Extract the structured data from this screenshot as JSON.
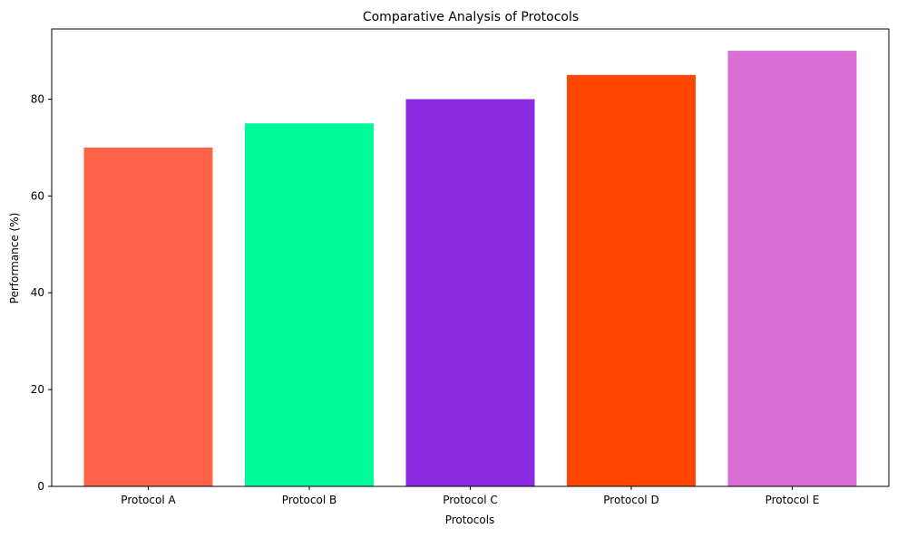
{
  "chart_data": {
    "type": "bar",
    "title": "Comparative Analysis of Protocols",
    "xlabel": "Protocols",
    "ylabel": "Performance (%)",
    "categories": [
      "Protocol A",
      "Protocol B",
      "Protocol C",
      "Protocol D",
      "Protocol E"
    ],
    "values": [
      70,
      75,
      80,
      85,
      90
    ],
    "colors": [
      "#ff6347",
      "#00fa9a",
      "#8a2be2",
      "#ff4500",
      "#da70d6"
    ],
    "ylim": [
      0,
      94.5
    ],
    "yticks": [
      0,
      20,
      40,
      60,
      80
    ],
    "grid": false,
    "legend": false
  }
}
